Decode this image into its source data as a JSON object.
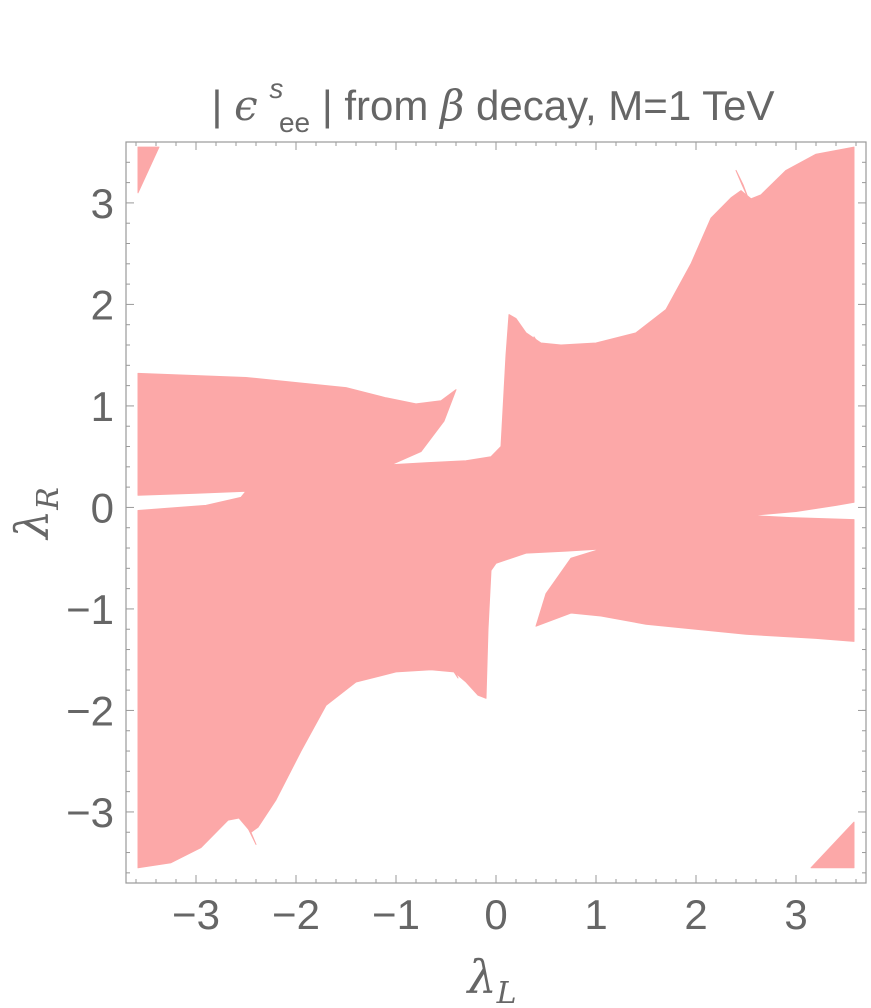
{
  "chart_data": {
    "type": "region",
    "title": {
      "prefix": "|",
      "symbol": "ϵ",
      "superscript": "s",
      "subscript": "ee",
      "suffix": "| from ",
      "beta": "β",
      "rest": " decay, M=1 TeV"
    },
    "xlabel": {
      "symbol": "λ",
      "subscript": "L"
    },
    "ylabel": {
      "symbol": "λ",
      "subscript": "R"
    },
    "xlim": [
      -3.7,
      3.7
    ],
    "ylim": [
      -3.7,
      3.6
    ],
    "xticks": [
      -3,
      -2,
      -1,
      0,
      1,
      2,
      3
    ],
    "yticks": [
      -3,
      -2,
      -1,
      0,
      1,
      2,
      3
    ],
    "xtick_labels": [
      "−3",
      "−2",
      "−1",
      "0",
      "1",
      "2",
      "3"
    ],
    "ytick_labels": [
      "−3",
      "−2",
      "−1",
      "0",
      "1",
      "2",
      "3"
    ],
    "fill_color": "#fca8a8",
    "frame_color": "#999999",
    "text_color": "#666666",
    "regions": [
      {
        "name": "allowed-region-main",
        "points": [
          [
            -3.58,
            1.32
          ],
          [
            -2.5,
            1.28
          ],
          [
            -1.5,
            1.18
          ],
          [
            -1.1,
            1.08
          ],
          [
            -0.8,
            1.02
          ],
          [
            -0.55,
            1.05
          ],
          [
            -0.4,
            1.16
          ],
          [
            -0.52,
            0.85
          ],
          [
            -0.75,
            0.55
          ],
          [
            -1.05,
            0.42
          ],
          [
            -0.7,
            0.44
          ],
          [
            -0.3,
            0.46
          ],
          [
            -0.05,
            0.5
          ],
          [
            0.05,
            0.6
          ],
          [
            0.1,
            1.5
          ],
          [
            0.13,
            1.9
          ],
          [
            0.2,
            1.86
          ],
          [
            0.3,
            1.72
          ],
          [
            0.45,
            1.62
          ],
          [
            0.65,
            1.6
          ],
          [
            1.0,
            1.62
          ],
          [
            1.4,
            1.72
          ],
          [
            1.7,
            1.95
          ],
          [
            1.95,
            2.4
          ],
          [
            2.15,
            2.85
          ],
          [
            2.35,
            3.05
          ],
          [
            2.45,
            3.12
          ],
          [
            2.55,
            3.04
          ],
          [
            2.65,
            3.08
          ],
          [
            2.9,
            3.32
          ],
          [
            3.2,
            3.48
          ],
          [
            3.58,
            3.55
          ],
          [
            3.58,
            0.05
          ],
          [
            3.4,
            0.02
          ],
          [
            3.0,
            -0.04
          ],
          [
            2.55,
            -0.08
          ],
          [
            2.95,
            -0.1
          ],
          [
            3.58,
            -0.12
          ],
          [
            3.58,
            -1.32
          ],
          [
            3.2,
            -1.29
          ],
          [
            2.5,
            -1.25
          ],
          [
            1.5,
            -1.15
          ],
          [
            1.05,
            -1.07
          ],
          [
            0.75,
            -1.04
          ],
          [
            0.4,
            -1.17
          ],
          [
            0.5,
            -0.85
          ],
          [
            0.75,
            -0.5
          ],
          [
            1.05,
            -0.41
          ],
          [
            0.7,
            -0.43
          ],
          [
            0.3,
            -0.45
          ],
          [
            0.0,
            -0.55
          ],
          [
            -0.05,
            -0.62
          ],
          [
            -0.08,
            -1.2
          ],
          [
            -0.1,
            -1.88
          ],
          [
            -0.18,
            -1.85
          ],
          [
            -0.3,
            -1.72
          ],
          [
            -0.42,
            -1.62
          ],
          [
            -0.65,
            -1.6
          ],
          [
            -1.0,
            -1.62
          ],
          [
            -1.4,
            -1.72
          ],
          [
            -1.7,
            -1.95
          ],
          [
            -1.95,
            -2.4
          ],
          [
            -2.2,
            -2.88
          ],
          [
            -2.38,
            -3.15
          ],
          [
            -2.45,
            -3.2
          ],
          [
            -2.57,
            -3.06
          ],
          [
            -2.68,
            -3.08
          ],
          [
            -2.95,
            -3.35
          ],
          [
            -3.25,
            -3.5
          ],
          [
            -3.58,
            -3.55
          ],
          [
            -3.58,
            -0.03
          ],
          [
            -3.3,
            -0.01
          ],
          [
            -2.9,
            0.02
          ],
          [
            -2.55,
            0.1
          ],
          [
            -2.5,
            0.16
          ],
          [
            -3.0,
            0.14
          ],
          [
            -3.58,
            0.12
          ]
        ]
      },
      {
        "name": "allowed-region-top-left",
        "points": [
          [
            -3.58,
            3.55
          ],
          [
            -3.37,
            3.55
          ],
          [
            -3.58,
            3.1
          ]
        ]
      },
      {
        "name": "allowed-region-bottom-right",
        "points": [
          [
            3.58,
            -3.55
          ],
          [
            3.58,
            -3.1
          ],
          [
            3.15,
            -3.55
          ]
        ]
      },
      {
        "name": "allowed-sliver-upper-middle",
        "points": [
          [
            0.38,
            1.68
          ],
          [
            0.42,
            1.62
          ],
          [
            0.52,
            1.36
          ],
          [
            0.47,
            1.5
          ]
        ]
      },
      {
        "name": "allowed-sliver-lower-middle",
        "points": [
          [
            -0.38,
            -1.68
          ],
          [
            -0.42,
            -1.62
          ],
          [
            -0.52,
            -1.36
          ],
          [
            -0.47,
            -1.5
          ]
        ]
      },
      {
        "name": "allowed-sliver-upper-right",
        "points": [
          [
            2.4,
            3.32
          ],
          [
            2.46,
            3.18
          ],
          [
            2.52,
            3.05
          ],
          [
            2.47,
            3.18
          ]
        ]
      },
      {
        "name": "allowed-sliver-lower-left",
        "points": [
          [
            -2.4,
            -3.32
          ],
          [
            -2.46,
            -3.18
          ],
          [
            -2.52,
            -3.05
          ],
          [
            -2.47,
            -3.18
          ]
        ]
      }
    ]
  }
}
